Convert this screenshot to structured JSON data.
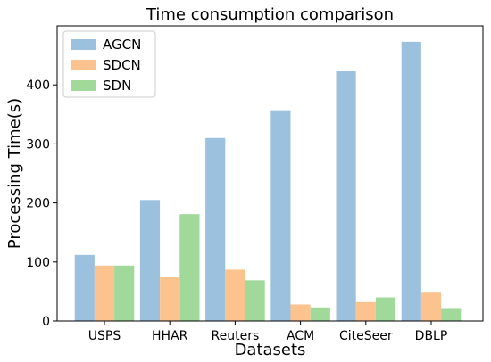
{
  "chart_data": {
    "type": "bar",
    "title": "Time consumption comparison",
    "xlabel": "Datasets",
    "ylabel": "Processing Time(s)",
    "categories": [
      "USPS",
      "HHAR",
      "Reuters",
      "ACM",
      "CiteSeer",
      "DBLP"
    ],
    "series": [
      {
        "name": "AGCN",
        "color": "#9cc1de",
        "values": [
          112,
          205,
          310,
          357,
          423,
          473
        ]
      },
      {
        "name": "SDCN",
        "color": "#fdc38f",
        "values": [
          94,
          74,
          87,
          28,
          32,
          48
        ]
      },
      {
        "name": "SDN",
        "color": "#a1d99b",
        "values": [
          94,
          181,
          69,
          23,
          40,
          22
        ]
      }
    ],
    "ylim": [
      0,
      500
    ],
    "yticks": [
      0,
      100,
      200,
      300,
      400
    ],
    "grid": false,
    "legend_position": "top-left"
  }
}
